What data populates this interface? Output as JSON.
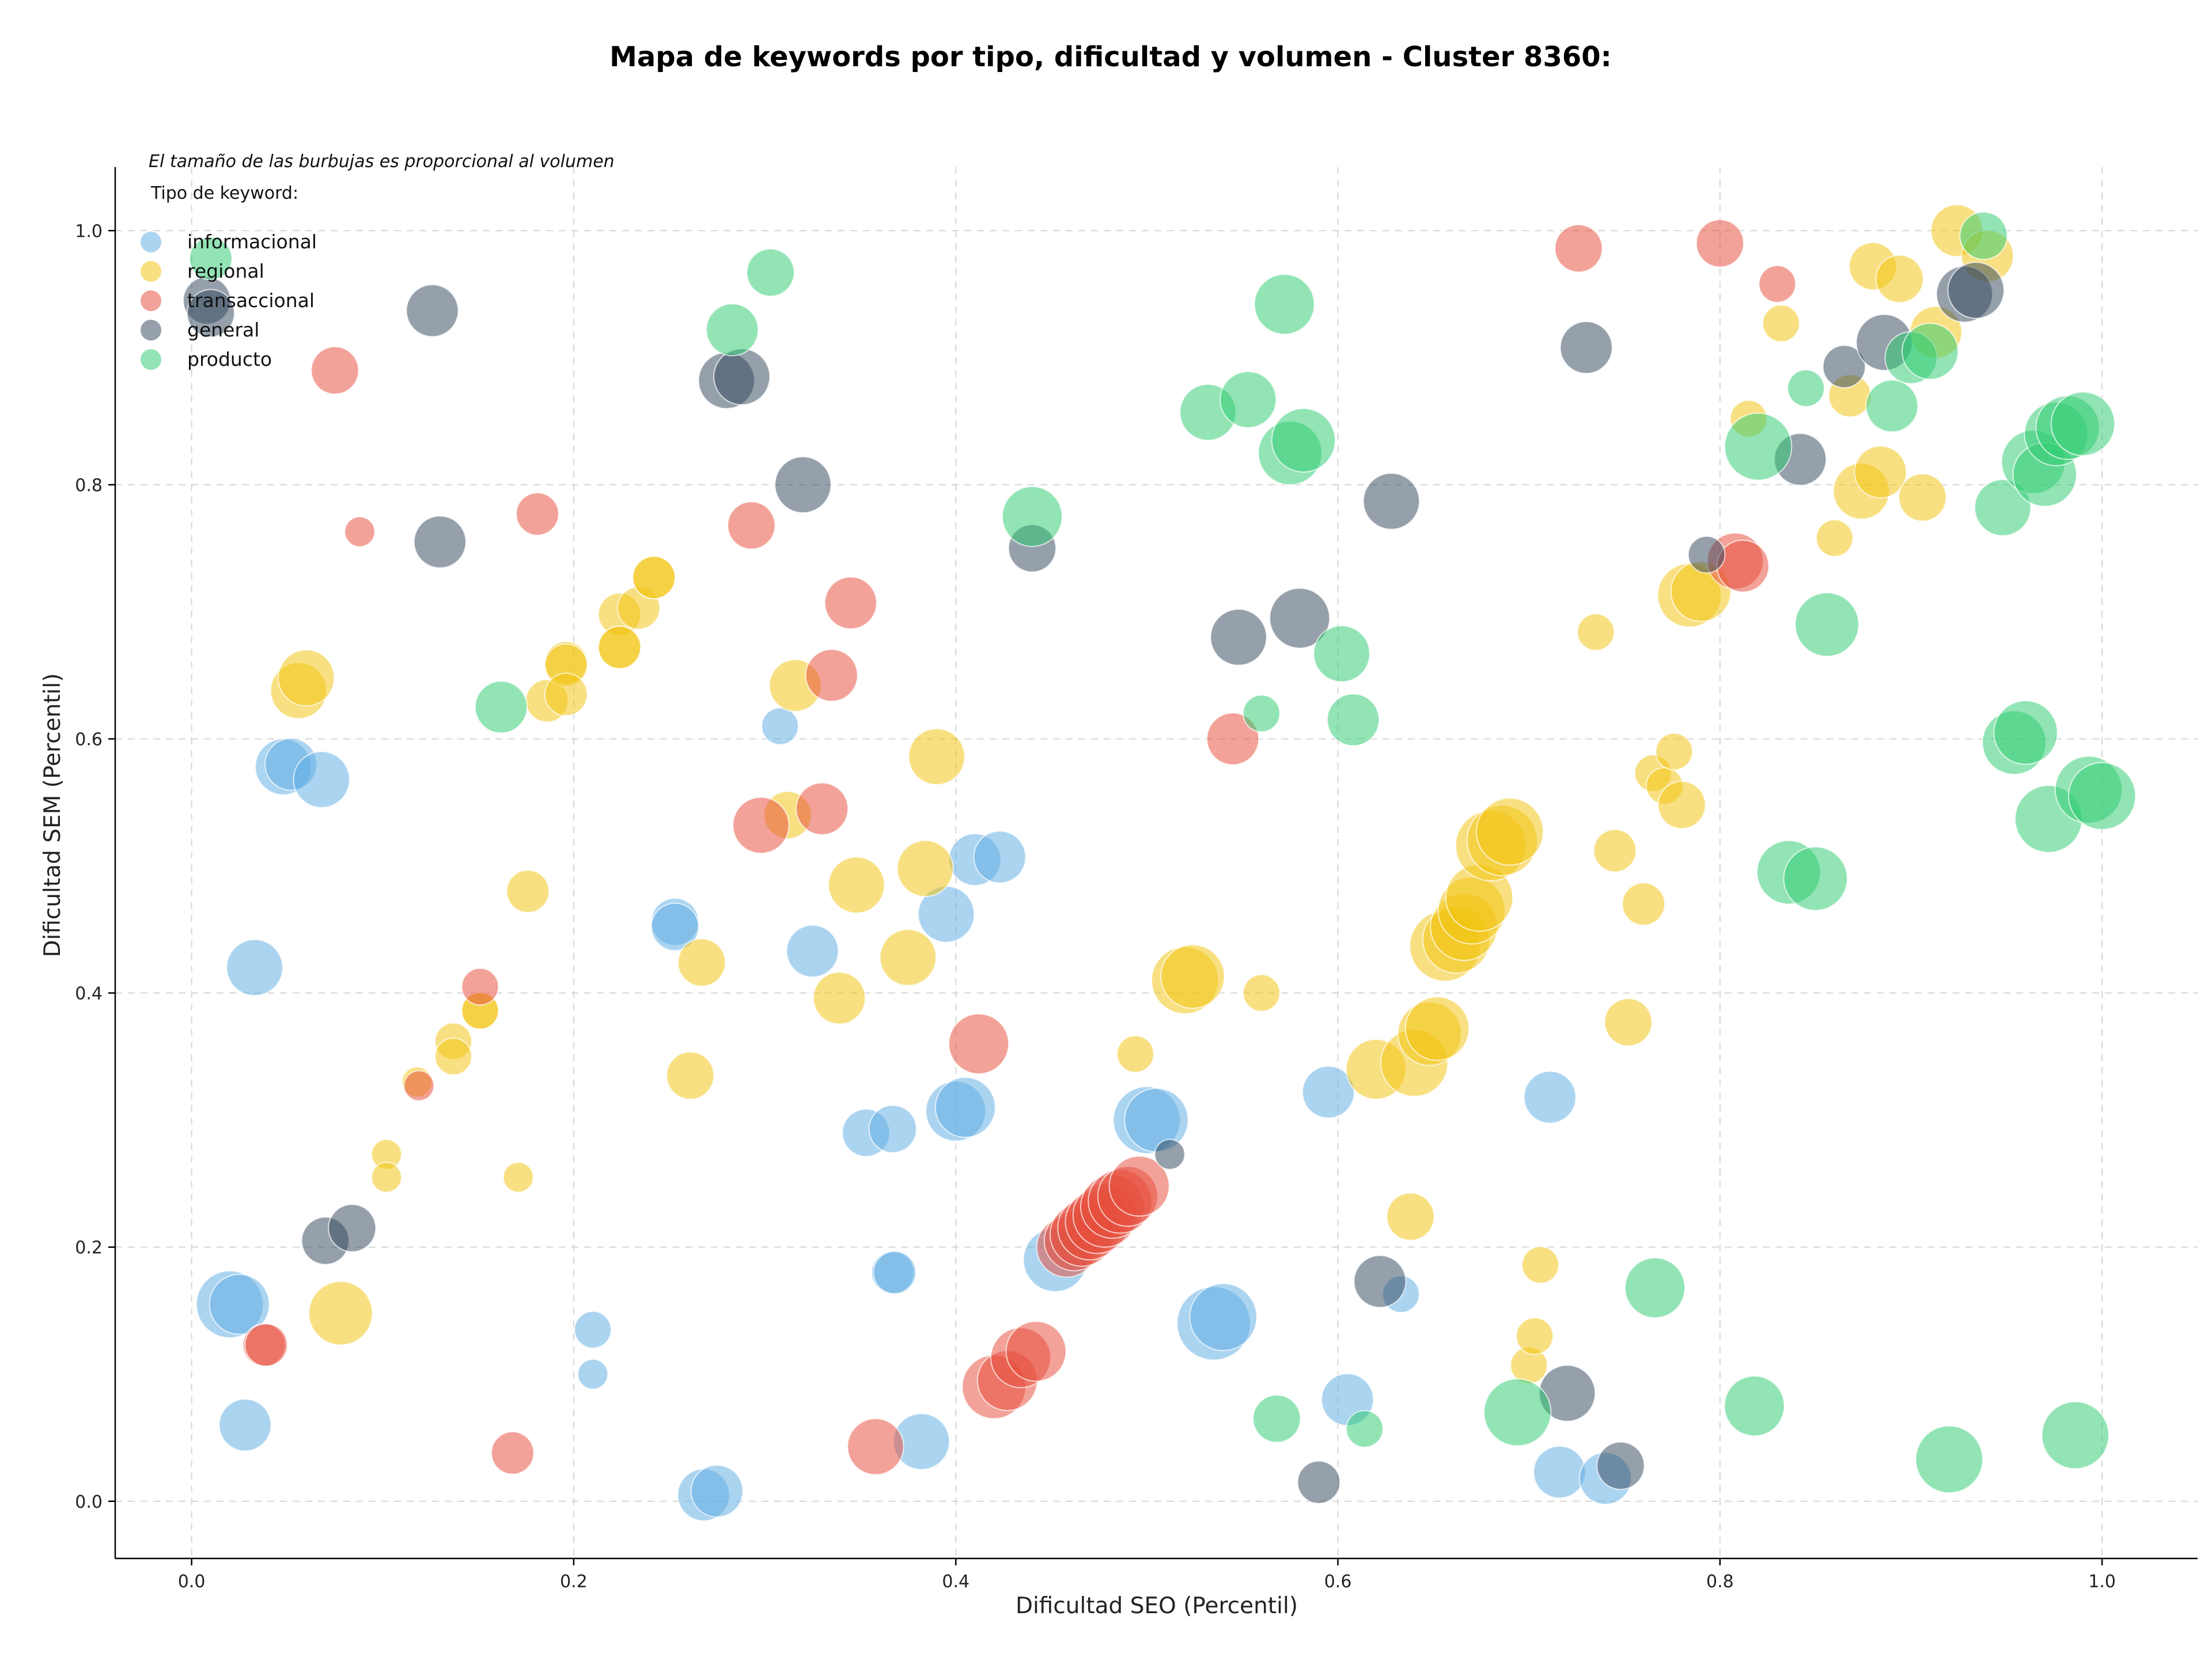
{
  "chart_data": {
    "type": "scatter",
    "title": "Mapa de keywords por tipo, dificultad y volumen - Cluster 8360:",
    "xlabel": "Dificultad SEO (Percentil)",
    "ylabel": "Dificultad SEM (Percentil)",
    "xlim": [
      -0.04,
      1.05
    ],
    "ylim": [
      -0.045,
      1.05
    ],
    "xticks": [
      0.0,
      0.2,
      0.4,
      0.6,
      0.8,
      1.0
    ],
    "yticks": [
      0.0,
      0.2,
      0.4,
      0.6,
      0.8,
      1.0
    ],
    "xtick_labels": [
      "0.0",
      "0.2",
      "0.4",
      "0.6",
      "0.8",
      "1.0"
    ],
    "ytick_labels": [
      "0.0",
      "0.2",
      "0.4",
      "0.6",
      "0.8",
      "1.0"
    ],
    "grid": true,
    "legend_position": "top-left",
    "annotation": "El tamaño de las burbujas es proporcional al volumen",
    "legend_title": "Tipo de keyword:",
    "series": [
      {
        "name": "informacional",
        "color": "#5DADE2",
        "points": [
          [
            0.02,
            0.155,
            5
          ],
          [
            0.025,
            0.155,
            4
          ],
          [
            0.028,
            0.06,
            3
          ],
          [
            0.033,
            0.42,
            3.5
          ],
          [
            0.048,
            0.578,
            3.5
          ],
          [
            0.052,
            0.58,
            3
          ],
          [
            0.068,
            0.568,
            3.5
          ],
          [
            0.21,
            0.135,
            1.5
          ],
          [
            0.21,
            0.1,
            1
          ],
          [
            0.253,
            0.456,
            2.5
          ],
          [
            0.253,
            0.452,
            2.5
          ],
          [
            0.268,
            0.005,
            3
          ],
          [
            0.275,
            0.008,
            3
          ],
          [
            0.308,
            0.61,
            1.5
          ],
          [
            0.325,
            0.433,
            3
          ],
          [
            0.353,
            0.29,
            2.5
          ],
          [
            0.367,
            0.293,
            2.5
          ],
          [
            0.367,
            0.18,
            2
          ],
          [
            0.368,
            0.18,
            2
          ],
          [
            0.382,
            0.047,
            3.5
          ],
          [
            0.395,
            0.462,
            3.5
          ],
          [
            0.4,
            0.307,
            4
          ],
          [
            0.405,
            0.31,
            4
          ],
          [
            0.41,
            0.505,
            3
          ],
          [
            0.423,
            0.507,
            3
          ],
          [
            0.452,
            0.19,
            4.5
          ],
          [
            0.5,
            0.3,
            5
          ],
          [
            0.505,
            0.3,
            4.5
          ],
          [
            0.535,
            0.14,
            6
          ],
          [
            0.54,
            0.145,
            5
          ],
          [
            0.595,
            0.322,
            3
          ],
          [
            0.605,
            0.08,
            3
          ],
          [
            0.633,
            0.163,
            1.5
          ],
          [
            0.711,
            0.318,
            3
          ],
          [
            0.716,
            0.023,
            3
          ],
          [
            0.74,
            0.018,
            3
          ]
        ]
      },
      {
        "name": "regional",
        "color": "#F1C40F",
        "points": [
          [
            0.056,
            0.638,
            3.5
          ],
          [
            0.06,
            0.648,
            3.5
          ],
          [
            0.078,
            0.148,
            4.5
          ],
          [
            0.102,
            0.273,
            1
          ],
          [
            0.102,
            0.255,
            1
          ],
          [
            0.118,
            0.33,
            1
          ],
          [
            0.137,
            0.362,
            1.5
          ],
          [
            0.137,
            0.35,
            1.5
          ],
          [
            0.151,
            0.386,
            1.5
          ],
          [
            0.151,
            0.386,
            1.5
          ],
          [
            0.171,
            0.255,
            1
          ],
          [
            0.176,
            0.48,
            2
          ],
          [
            0.186,
            0.63,
            2
          ],
          [
            0.196,
            0.66,
            2
          ],
          [
            0.196,
            0.658,
            2
          ],
          [
            0.196,
            0.635,
            2
          ],
          [
            0.224,
            0.698,
            2
          ],
          [
            0.224,
            0.672,
            2
          ],
          [
            0.224,
            0.672,
            2
          ],
          [
            0.234,
            0.703,
            2
          ],
          [
            0.242,
            0.727,
            2
          ],
          [
            0.242,
            0.727,
            2
          ],
          [
            0.261,
            0.335,
            2.5
          ],
          [
            0.267,
            0.424,
            2.5
          ],
          [
            0.312,
            0.54,
            2.5
          ],
          [
            0.316,
            0.642,
            3
          ],
          [
            0.339,
            0.396,
            3
          ],
          [
            0.348,
            0.485,
            3.5
          ],
          [
            0.375,
            0.428,
            3.5
          ],
          [
            0.384,
            0.498,
            3.5
          ],
          [
            0.39,
            0.586,
            3.5
          ],
          [
            0.494,
            0.352,
            1.5
          ],
          [
            0.52,
            0.41,
            5
          ],
          [
            0.524,
            0.413,
            4.5
          ],
          [
            0.56,
            0.4,
            1.5
          ],
          [
            0.62,
            0.34,
            4
          ],
          [
            0.638,
            0.224,
            2.5
          ],
          [
            0.64,
            0.345,
            5
          ],
          [
            0.648,
            0.368,
            4.5
          ],
          [
            0.652,
            0.372,
            4.5
          ],
          [
            0.656,
            0.437,
            5.5
          ],
          [
            0.662,
            0.442,
            5
          ],
          [
            0.666,
            0.452,
            5
          ],
          [
            0.67,
            0.465,
            5
          ],
          [
            0.674,
            0.475,
            5
          ],
          [
            0.68,
            0.516,
            5.5
          ],
          [
            0.686,
            0.52,
            5.5
          ],
          [
            0.69,
            0.527,
            5
          ],
          [
            0.7,
            0.107,
            1.5
          ],
          [
            0.703,
            0.13,
            1.5
          ],
          [
            0.706,
            0.186,
            1.5
          ],
          [
            0.735,
            0.684,
            1.5
          ],
          [
            0.745,
            0.512,
            2
          ],
          [
            0.752,
            0.377,
            2.5
          ],
          [
            0.76,
            0.47,
            2
          ],
          [
            0.765,
            0.573,
            1.5
          ],
          [
            0.771,
            0.563,
            1.5
          ],
          [
            0.776,
            0.59,
            1.5
          ],
          [
            0.78,
            0.548,
            2.5
          ],
          [
            0.784,
            0.713,
            4.5
          ],
          [
            0.79,
            0.716,
            4
          ],
          [
            0.815,
            0.852,
            1.5
          ],
          [
            0.832,
            0.927,
            1.5
          ],
          [
            0.86,
            0.758,
            1.5
          ],
          [
            0.868,
            0.87,
            2
          ],
          [
            0.874,
            0.795,
            3.5
          ],
          [
            0.88,
            0.972,
            2.5
          ],
          [
            0.884,
            0.81,
            3
          ],
          [
            0.894,
            0.962,
            2.5
          ],
          [
            0.906,
            0.79,
            2.5
          ],
          [
            0.913,
            0.92,
            3
          ],
          [
            0.924,
            1.0,
            3
          ],
          [
            0.94,
            0.98,
            3
          ]
        ]
      },
      {
        "name": "transaccional",
        "color": "#E74C3C",
        "points": [
          [
            0.038,
            0.123,
            2
          ],
          [
            0.039,
            0.123,
            2
          ],
          [
            0.075,
            0.89,
            2.5
          ],
          [
            0.088,
            0.763,
            1
          ],
          [
            0.119,
            0.327,
            1
          ],
          [
            0.151,
            0.405,
            1.5
          ],
          [
            0.168,
            0.038,
            2
          ],
          [
            0.181,
            0.777,
            2
          ],
          [
            0.293,
            0.768,
            2.5
          ],
          [
            0.298,
            0.532,
            3.5
          ],
          [
            0.33,
            0.545,
            3
          ],
          [
            0.335,
            0.65,
            3
          ],
          [
            0.345,
            0.707,
            3
          ],
          [
            0.358,
            0.043,
            3.5
          ],
          [
            0.412,
            0.36,
            4
          ],
          [
            0.42,
            0.09,
            4.5
          ],
          [
            0.427,
            0.095,
            4
          ],
          [
            0.434,
            0.113,
            4
          ],
          [
            0.442,
            0.118,
            4
          ],
          [
            0.458,
            0.2,
            4
          ],
          [
            0.462,
            0.205,
            4
          ],
          [
            0.466,
            0.21,
            4.5
          ],
          [
            0.47,
            0.215,
            4.5
          ],
          [
            0.474,
            0.22,
            4.5
          ],
          [
            0.478,
            0.225,
            4.5
          ],
          [
            0.482,
            0.232,
            4.5
          ],
          [
            0.486,
            0.236,
            4.5
          ],
          [
            0.49,
            0.24,
            4
          ],
          [
            0.496,
            0.248,
            4
          ],
          [
            0.545,
            0.6,
            3
          ],
          [
            0.726,
            0.986,
            2.5
          ],
          [
            0.8,
            0.99,
            2.5
          ],
          [
            0.808,
            0.74,
            3.5
          ],
          [
            0.812,
            0.736,
            3
          ],
          [
            0.83,
            0.958,
            1.5
          ]
        ]
      },
      {
        "name": "general",
        "color": "#34495E",
        "points": [
          [
            0.008,
            0.945,
            2.5
          ],
          [
            0.01,
            0.935,
            2.5
          ],
          [
            0.126,
            0.937,
            3
          ],
          [
            0.13,
            0.755,
            3
          ],
          [
            0.07,
            0.205,
            2.5
          ],
          [
            0.084,
            0.215,
            2.5
          ],
          [
            0.28,
            0.882,
            3.5
          ],
          [
            0.288,
            0.885,
            3.5
          ],
          [
            0.32,
            0.8,
            3.5
          ],
          [
            0.44,
            0.75,
            2.5
          ],
          [
            0.512,
            0.273,
            1
          ],
          [
            0.548,
            0.68,
            3.5
          ],
          [
            0.58,
            0.695,
            4
          ],
          [
            0.59,
            0.015,
            2
          ],
          [
            0.622,
            0.173,
            3
          ],
          [
            0.628,
            0.787,
            3.5
          ],
          [
            0.72,
            0.085,
            3.5
          ],
          [
            0.73,
            0.908,
            3
          ],
          [
            0.748,
            0.028,
            2.5
          ],
          [
            0.793,
            0.745,
            1.5
          ],
          [
            0.842,
            0.82,
            3
          ],
          [
            0.865,
            0.893,
            2
          ],
          [
            0.886,
            0.912,
            3.5
          ],
          [
            0.928,
            0.95,
            3.5
          ],
          [
            0.934,
            0.953,
            3.5
          ]
        ]
      },
      {
        "name": "producto",
        "color": "#2ECC71",
        "points": [
          [
            0.01,
            0.978,
            2
          ],
          [
            0.162,
            0.625,
            3
          ],
          [
            0.283,
            0.922,
            3
          ],
          [
            0.303,
            0.967,
            2.5
          ],
          [
            0.44,
            0.775,
            4
          ],
          [
            0.532,
            0.857,
            3.5
          ],
          [
            0.553,
            0.867,
            3.5
          ],
          [
            0.56,
            0.62,
            1.5
          ],
          [
            0.568,
            0.065,
            2.5
          ],
          [
            0.572,
            0.942,
            4
          ],
          [
            0.575,
            0.825,
            4.5
          ],
          [
            0.582,
            0.835,
            4.5
          ],
          [
            0.602,
            0.667,
            3.5
          ],
          [
            0.608,
            0.615,
            3
          ],
          [
            0.614,
            0.057,
            1.5
          ],
          [
            0.694,
            0.07,
            5
          ],
          [
            0.766,
            0.168,
            4
          ],
          [
            0.818,
            0.075,
            4
          ],
          [
            0.82,
            0.83,
            5
          ],
          [
            0.836,
            0.495,
            4.5
          ],
          [
            0.85,
            0.49,
            4.5
          ],
          [
            0.845,
            0.876,
            1.5
          ],
          [
            0.856,
            0.69,
            4.5
          ],
          [
            0.89,
            0.862,
            3
          ],
          [
            0.9,
            0.9,
            3
          ],
          [
            0.91,
            0.905,
            3.5
          ],
          [
            0.92,
            0.033,
            5
          ],
          [
            0.938,
            0.996,
            2.5
          ],
          [
            0.948,
            0.782,
            3.5
          ],
          [
            0.954,
            0.597,
            4.5
          ],
          [
            0.96,
            0.605,
            4.5
          ],
          [
            0.964,
            0.818,
            4.5
          ],
          [
            0.97,
            0.808,
            4.5
          ],
          [
            0.972,
            0.537,
            5
          ],
          [
            0.976,
            0.84,
            4.5
          ],
          [
            0.982,
            0.845,
            4.5
          ],
          [
            0.986,
            0.052,
            5
          ],
          [
            0.99,
            0.848,
            4.5
          ],
          [
            0.993,
            0.56,
            5
          ],
          [
            1.0,
            0.555,
            5
          ]
        ]
      }
    ]
  }
}
